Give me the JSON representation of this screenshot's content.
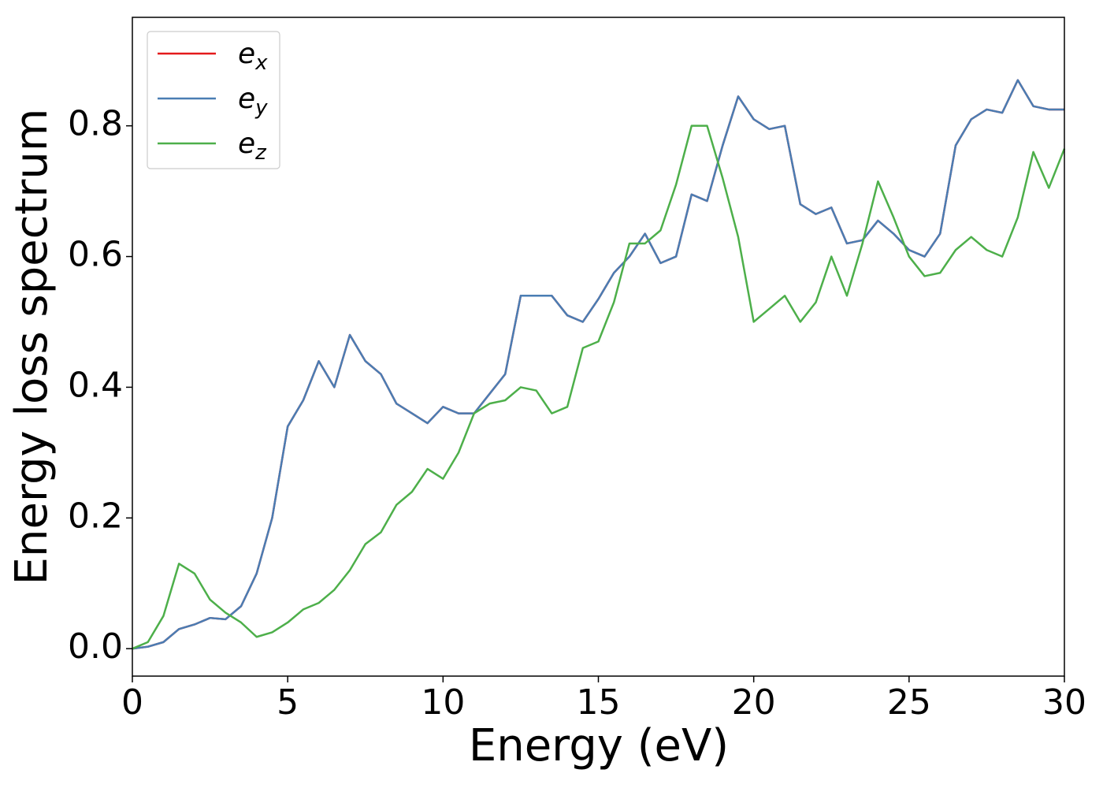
{
  "chart_data": {
    "type": "line",
    "xlabel": "Energy (eV)",
    "ylabel": "Energy loss spectrum",
    "xlim": [
      0,
      30
    ],
    "ylim": [
      -0.042,
      0.966
    ],
    "xticks": [
      0,
      5,
      10,
      15,
      20,
      25,
      30
    ],
    "yticks": [
      {
        "value": 0,
        "label": "0.0"
      },
      0.2,
      0.4,
      0.6,
      0.8
    ],
    "grid": false,
    "legend": "upper left",
    "x": [
      0,
      0.5,
      1,
      1.5,
      2,
      2.5,
      3,
      3.5,
      4,
      4.5,
      5,
      5.5,
      6,
      6.5,
      7,
      7.5,
      8,
      8.5,
      9,
      9.5,
      10,
      10.5,
      11,
      11.5,
      12,
      12.5,
      13,
      13.5,
      14,
      14.5,
      15,
      15.5,
      16,
      16.5,
      17,
      17.5,
      18,
      18.5,
      19,
      19.5,
      20,
      20.5,
      21,
      21.5,
      22,
      22.5,
      23,
      23.5,
      24,
      24.5,
      25,
      25.5,
      26,
      26.5,
      27,
      27.5,
      28,
      28.5,
      29,
      29.5,
      30
    ],
    "series": [
      {
        "name": "e_x",
        "color": "#e41a1c",
        "values": [
          0,
          0.003,
          0.01,
          0.03,
          0.037,
          0.047,
          0.045,
          0.065,
          0.115,
          0.2,
          0.34,
          0.38,
          0.44,
          0.4,
          0.48,
          0.44,
          0.42,
          0.375,
          0.36,
          0.345,
          0.37,
          0.36,
          0.36,
          0.39,
          0.42,
          0.54,
          0.54,
          0.54,
          0.51,
          0.5,
          0.535,
          0.575,
          0.6,
          0.635,
          0.59,
          0.6,
          0.695,
          0.685,
          0.77,
          0.845,
          0.81,
          0.795,
          0.8,
          0.68,
          0.665,
          0.675,
          0.62,
          0.625,
          0.655,
          0.635,
          0.61,
          0.6,
          0.635,
          0.77,
          0.81,
          0.825,
          0.82,
          0.87,
          0.83,
          0.825,
          0.825
        ]
      },
      {
        "name": "e_y",
        "color": "#4a7db3",
        "values": [
          0,
          0.003,
          0.01,
          0.03,
          0.037,
          0.047,
          0.045,
          0.065,
          0.115,
          0.2,
          0.34,
          0.38,
          0.44,
          0.4,
          0.48,
          0.44,
          0.42,
          0.375,
          0.36,
          0.345,
          0.37,
          0.36,
          0.36,
          0.39,
          0.42,
          0.54,
          0.54,
          0.54,
          0.51,
          0.5,
          0.535,
          0.575,
          0.6,
          0.635,
          0.59,
          0.6,
          0.695,
          0.685,
          0.77,
          0.845,
          0.81,
          0.795,
          0.8,
          0.68,
          0.665,
          0.675,
          0.62,
          0.625,
          0.655,
          0.635,
          0.61,
          0.6,
          0.635,
          0.77,
          0.81,
          0.825,
          0.82,
          0.87,
          0.83,
          0.825,
          0.825
        ]
      },
      {
        "name": "e_z",
        "color": "#4daf4a",
        "values": [
          0,
          0.01,
          0.05,
          0.13,
          0.115,
          0.075,
          0.055,
          0.04,
          0.018,
          0.025,
          0.04,
          0.06,
          0.07,
          0.09,
          0.12,
          0.16,
          0.178,
          0.22,
          0.24,
          0.275,
          0.26,
          0.3,
          0.36,
          0.375,
          0.38,
          0.4,
          0.395,
          0.36,
          0.37,
          0.46,
          0.47,
          0.53,
          0.62,
          0.62,
          0.64,
          0.71,
          0.8,
          0.8,
          0.72,
          0.63,
          0.5,
          0.52,
          0.54,
          0.5,
          0.53,
          0.6,
          0.54,
          0.62,
          0.715,
          0.66,
          0.6,
          0.57,
          0.575,
          0.61,
          0.63,
          0.61,
          0.6,
          0.66,
          0.76,
          0.705,
          0.765
        ]
      }
    ]
  }
}
